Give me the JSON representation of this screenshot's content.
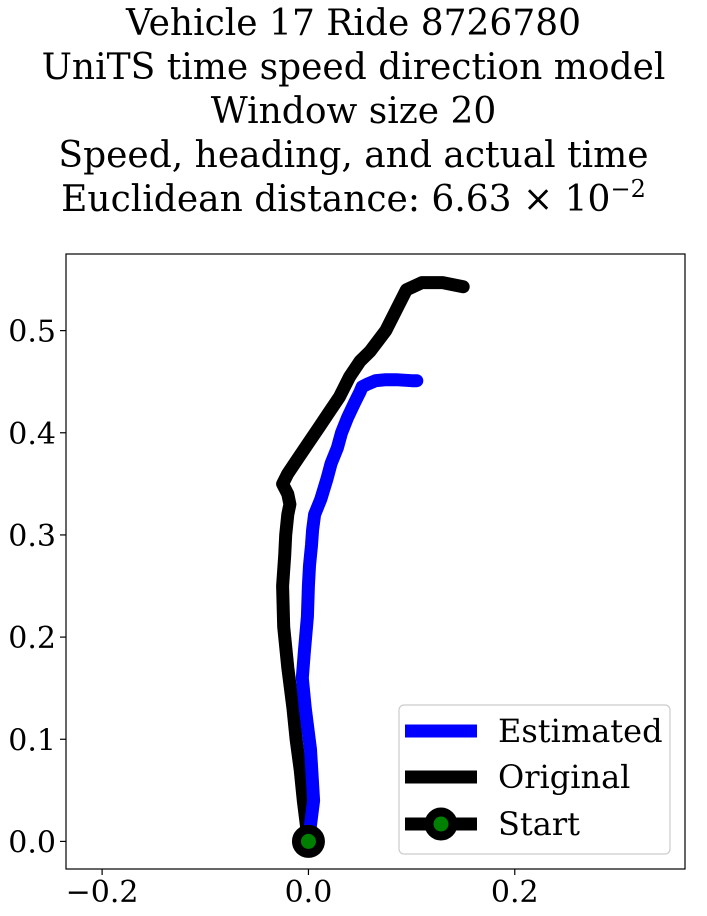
{
  "title_lines": [
    "Vehicle 17 Ride 8726780",
    "UniTS time speed direction model",
    "Window size 20",
    "Speed, heading, and actual time"
  ],
  "title_distance": {
    "prefix": "Euclidean distance: ",
    "mantissa": "6.63",
    "times": "×",
    "base": "10",
    "exponent": "−2"
  },
  "chart_data": {
    "type": "line",
    "xlim": [
      -0.235,
      0.365
    ],
    "ylim": [
      -0.027,
      0.575
    ],
    "grid": false,
    "legend_position": "bottom-right",
    "x_ticks": [
      {
        "value": -0.2,
        "label": "−0.2"
      },
      {
        "value": 0.0,
        "label": "0.0"
      },
      {
        "value": 0.2,
        "label": "0.2"
      }
    ],
    "y_ticks": [
      {
        "value": 0.0,
        "label": "0.0"
      },
      {
        "value": 0.1,
        "label": "0.1"
      },
      {
        "value": 0.2,
        "label": "0.2"
      },
      {
        "value": 0.3,
        "label": "0.3"
      },
      {
        "value": 0.4,
        "label": "0.4"
      },
      {
        "value": 0.5,
        "label": "0.5"
      }
    ],
    "series": [
      {
        "name": "Estimated",
        "color": "#0000ff",
        "x": [
          0.0,
          0.005,
          0.002,
          -0.003,
          -0.006,
          -0.004,
          -0.001,
          0.0,
          0.001,
          0.002,
          0.003,
          0.004,
          0.006,
          0.012,
          0.018,
          0.022,
          0.028,
          0.032,
          0.038,
          0.045,
          0.05,
          0.052,
          0.058,
          0.065,
          0.075,
          0.085,
          0.1,
          0.105
        ],
        "y": [
          0.0,
          0.04,
          0.09,
          0.13,
          0.16,
          0.185,
          0.22,
          0.25,
          0.27,
          0.28,
          0.29,
          0.305,
          0.32,
          0.335,
          0.355,
          0.37,
          0.385,
          0.4,
          0.415,
          0.43,
          0.44,
          0.445,
          0.448,
          0.451,
          0.452,
          0.452,
          0.451,
          0.451
        ]
      },
      {
        "name": "Original",
        "color": "#000000",
        "x": [
          0.0,
          -0.005,
          -0.008,
          -0.012,
          -0.015,
          -0.02,
          -0.024,
          -0.025,
          -0.023,
          -0.022,
          -0.02,
          -0.018,
          -0.02,
          -0.025,
          -0.02,
          -0.01,
          0.0,
          0.01,
          0.02,
          0.03,
          0.04,
          0.05,
          0.06,
          0.075,
          0.085,
          0.095,
          0.11,
          0.13,
          0.15
        ],
        "y": [
          0.0,
          0.04,
          0.07,
          0.1,
          0.13,
          0.17,
          0.21,
          0.25,
          0.28,
          0.3,
          0.32,
          0.33,
          0.34,
          0.35,
          0.36,
          0.375,
          0.39,
          0.405,
          0.42,
          0.435,
          0.455,
          0.47,
          0.48,
          0.5,
          0.52,
          0.54,
          0.547,
          0.547,
          0.543
        ]
      }
    ],
    "start_point": {
      "name": "Start",
      "x": 0.0,
      "y": 0.0,
      "edge_color": "#000000",
      "face_color": "#008000"
    }
  }
}
